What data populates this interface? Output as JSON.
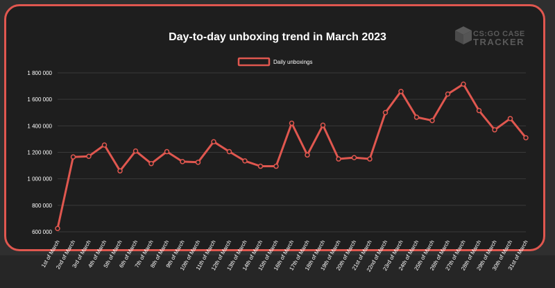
{
  "brand": {
    "line1": "CS:GO CASE",
    "line2": "TRACKER",
    "icon": "box-icon",
    "color": "#5a5a5a"
  },
  "colors": {
    "accent": "#e0574f",
    "background": "#1e1e1e",
    "grid": "#3a3a3a"
  },
  "chart_data": {
    "type": "line",
    "title": "Day-to-day unboxing trend in March 2023",
    "legend_position": "top",
    "grid": true,
    "ylim": [
      600000,
      1800000
    ],
    "yticks": [
      600000,
      800000,
      1000000,
      1200000,
      1400000,
      1600000,
      1800000
    ],
    "ytick_labels": [
      "600 000",
      "800 000",
      "1 000 000",
      "1 200 000",
      "1 400 000",
      "1 600 000",
      "1 800 000"
    ],
    "categories": [
      "1st of March",
      "2nd of March",
      "3rd of March",
      "4th of March",
      "5th of March",
      "6th of March",
      "7th of March",
      "8th of March",
      "9th of March",
      "10th of March",
      "11th of March",
      "12th of March",
      "13th of March",
      "14th of March",
      "15th of March",
      "16th of March",
      "17th of March",
      "18th of March",
      "19th of March",
      "20th of March",
      "21st of March",
      "22nd of March",
      "23rd of March",
      "24th of March",
      "25th of March",
      "26th of March",
      "27th of March",
      "28th of March",
      "29th of March",
      "30th of March",
      "31st of March"
    ],
    "series": [
      {
        "name": "Daily unboxings",
        "color": "#e0574f",
        "values": [
          625000,
          1165000,
          1170000,
          1255000,
          1060000,
          1210000,
          1115000,
          1205000,
          1130000,
          1125000,
          1280000,
          1205000,
          1135000,
          1095000,
          1095000,
          1420000,
          1180000,
          1405000,
          1150000,
          1160000,
          1150000,
          1500000,
          1660000,
          1465000,
          1440000,
          1640000,
          1715000,
          1515000,
          1370000,
          1455000,
          1310000
        ]
      }
    ]
  }
}
